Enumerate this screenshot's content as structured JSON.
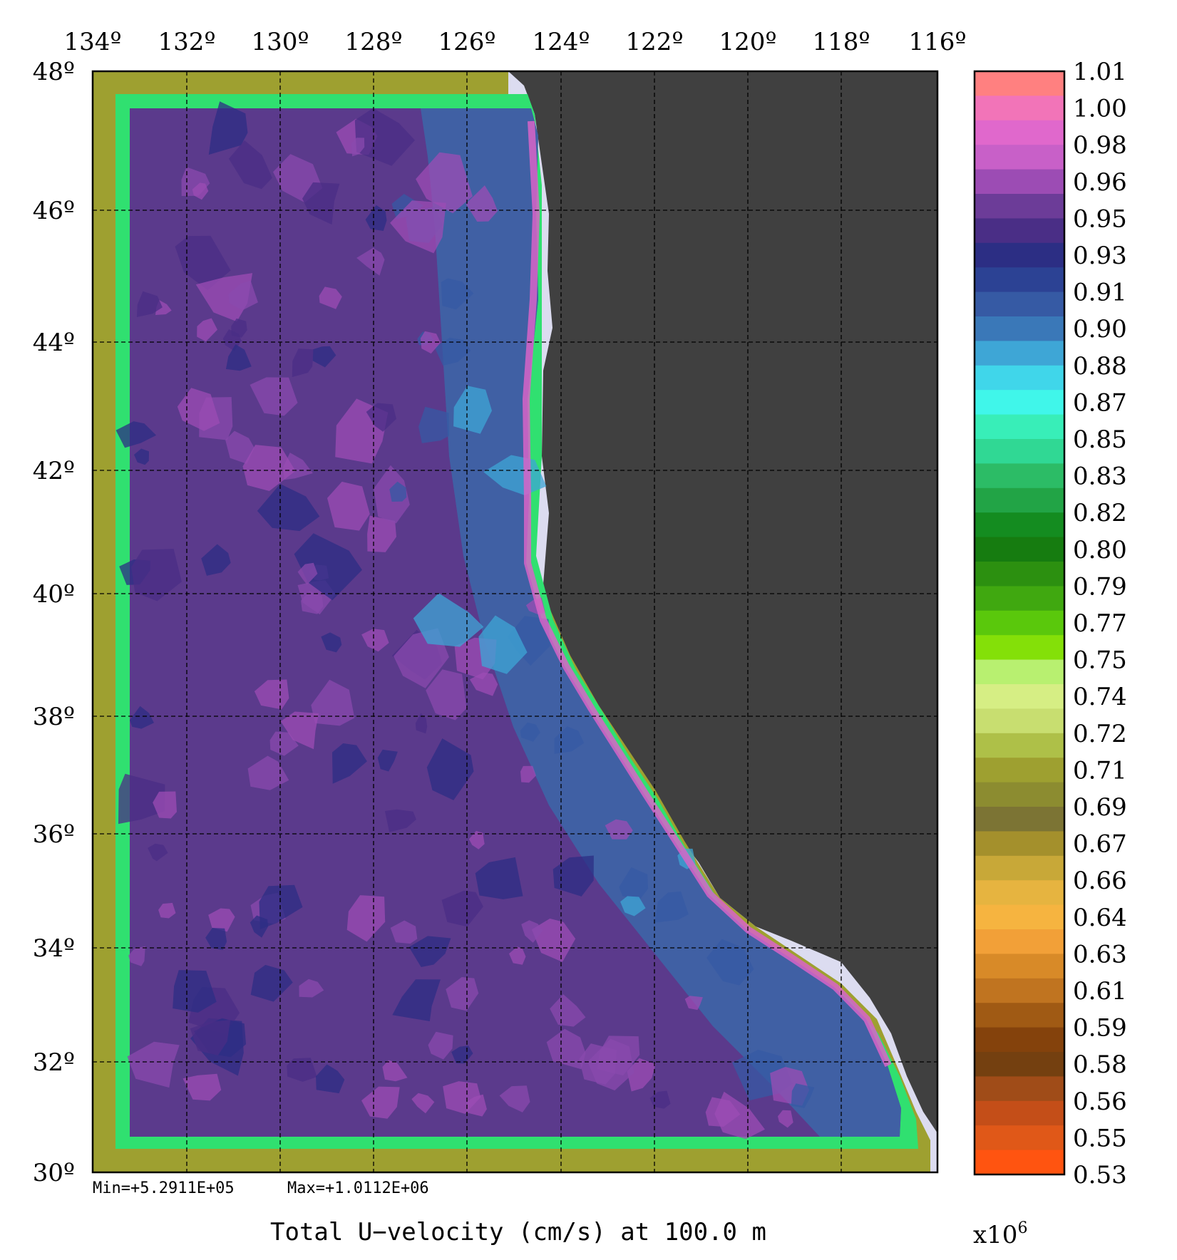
{
  "map": {
    "title": "Total U−velocity (cm/s) at 100.0 m",
    "min_label": "Min=+5.2911E+05",
    "max_label": "Max=+1.0112E+06",
    "lon_ticks": [
      "134º",
      "132º",
      "130º",
      "128º",
      "126º",
      "124º",
      "122º",
      "120º",
      "118º",
      "116º"
    ],
    "lat_ticks": [
      "48º",
      "46º",
      "44º",
      "42º",
      "40º",
      "38º",
      "36º",
      "34º",
      "32º",
      "30º"
    ],
    "colors": {
      "land": "#404040",
      "coast_fill": "#dcdcf0",
      "ocean_base": "#5b3a8c",
      "ocean_coastal": "#3a6aaa",
      "grid": "#000000"
    }
  },
  "colorbar": {
    "labels": [
      "1.01",
      "1.00",
      "0.98",
      "0.96",
      "0.95",
      "0.93",
      "0.91",
      "0.90",
      "0.88",
      "0.87",
      "0.85",
      "0.83",
      "0.82",
      "0.80",
      "0.79",
      "0.77",
      "0.75",
      "0.74",
      "0.72",
      "0.71",
      "0.69",
      "0.67",
      "0.66",
      "0.64",
      "0.63",
      "0.61",
      "0.59",
      "0.58",
      "0.56",
      "0.55",
      "0.53"
    ],
    "multiplier": "x10",
    "exponent": "6",
    "colors": [
      "#ff8080",
      "#f274b8",
      "#e068cc",
      "#c860c8",
      "#9c4cb4",
      "#6c3c98",
      "#4a2e86",
      "#2c2e84",
      "#2c4294",
      "#365aa4",
      "#3a78b8",
      "#3ea6d6",
      "#40d6ea",
      "#40f6ea",
      "#38eeb8",
      "#30d894",
      "#2cbc66",
      "#22a446",
      "#148c20",
      "#167c10",
      "#2c9010",
      "#40a810",
      "#5ac80c",
      "#84e008",
      "#b8f070",
      "#d6ee84",
      "#c8de70",
      "#aec048",
      "#9ea030",
      "#8c8c30",
      "#7c7434",
      "#a4902c",
      "#c8a838",
      "#e6b440",
      "#f6b440",
      "#f2a038",
      "#d88a28",
      "#c07420",
      "#a05a14",
      "#84420c",
      "#744010",
      "#a04c18",
      "#c44e18",
      "#e05818",
      "#ff5410"
    ]
  }
}
